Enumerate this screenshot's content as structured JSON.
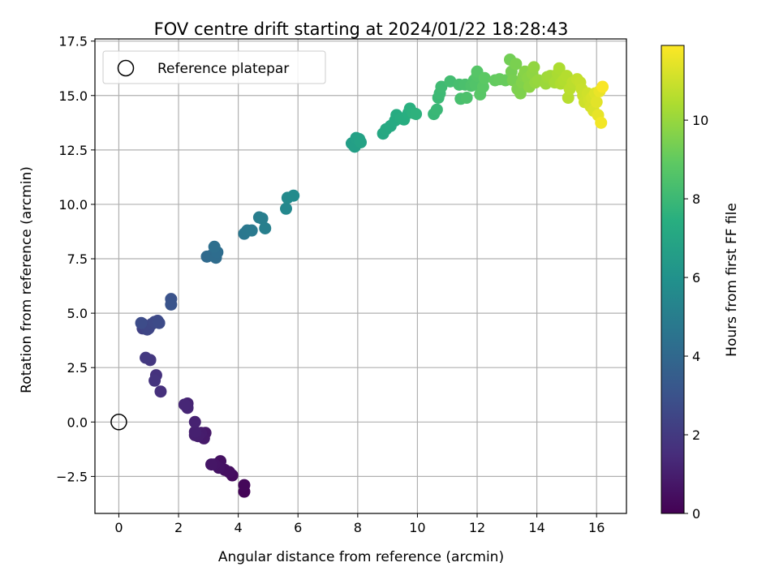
{
  "chart_data": {
    "type": "scatter",
    "title": "FOV centre drift starting at 2024/01/22 18:28:43",
    "xlabel": "Angular distance from reference (arcmin)",
    "ylabel": "Rotation from reference (arcmin)",
    "xlim": [
      -0.8,
      17.0
    ],
    "ylim": [
      -4.2,
      17.6
    ],
    "x_ticks": [
      0,
      2,
      4,
      6,
      8,
      10,
      12,
      14,
      16
    ],
    "y_ticks": [
      -2.5,
      0.0,
      2.5,
      5.0,
      7.5,
      10.0,
      12.5,
      15.0,
      17.5
    ],
    "x_tick_labels": [
      "0",
      "2",
      "4",
      "6",
      "8",
      "10",
      "12",
      "14",
      "16"
    ],
    "y_tick_labels": [
      "−2.5",
      "0.0",
      "2.5",
      "5.0",
      "7.5",
      "10.0",
      "12.5",
      "15.0",
      "17.5"
    ],
    "grid": true,
    "colorbar": {
      "label": "Hours from first FF file",
      "colormap": "viridis",
      "range": [
        0,
        11.9
      ],
      "ticks": [
        0,
        2,
        4,
        6,
        8,
        10
      ],
      "tick_labels": [
        "0",
        "2",
        "4",
        "6",
        "8",
        "10"
      ]
    },
    "legend": {
      "placement": "top-left",
      "entries": [
        {
          "label": "Reference platepar",
          "marker": "open-circle"
        }
      ]
    },
    "reference_point": {
      "x": 0,
      "y": 0,
      "label": "Reference platepar"
    },
    "points": [
      {
        "x": 4.2,
        "y": -3.2,
        "c": 0.1
      },
      {
        "x": 4.2,
        "y": -2.9,
        "c": 0.2
      },
      {
        "x": 3.8,
        "y": -2.45,
        "c": 0.35
      },
      {
        "x": 3.7,
        "y": -2.3,
        "c": 0.45
      },
      {
        "x": 3.55,
        "y": -2.2,
        "c": 0.5
      },
      {
        "x": 3.4,
        "y": -1.8,
        "c": 0.55
      },
      {
        "x": 3.35,
        "y": -2.1,
        "c": 0.6
      },
      {
        "x": 3.2,
        "y": -1.95,
        "c": 0.65
      },
      {
        "x": 3.1,
        "y": -1.95,
        "c": 0.7
      },
      {
        "x": 2.9,
        "y": -0.5,
        "c": 0.8
      },
      {
        "x": 2.85,
        "y": -0.75,
        "c": 0.85
      },
      {
        "x": 2.75,
        "y": -0.5,
        "c": 0.9
      },
      {
        "x": 2.65,
        "y": -0.65,
        "c": 0.95
      },
      {
        "x": 2.55,
        "y": -0.6,
        "c": 1.0
      },
      {
        "x": 2.55,
        "y": -0.45,
        "c": 1.05
      },
      {
        "x": 2.55,
        "y": 0.0,
        "c": 1.1
      },
      {
        "x": 2.3,
        "y": 0.85,
        "c": 1.2
      },
      {
        "x": 2.3,
        "y": 0.65,
        "c": 1.25
      },
      {
        "x": 2.2,
        "y": 0.8,
        "c": 1.3
      },
      {
        "x": 1.4,
        "y": 1.4,
        "c": 1.6
      },
      {
        "x": 1.25,
        "y": 2.15,
        "c": 1.7
      },
      {
        "x": 1.2,
        "y": 1.9,
        "c": 1.75
      },
      {
        "x": 1.05,
        "y": 2.85,
        "c": 1.9
      },
      {
        "x": 0.9,
        "y": 2.95,
        "c": 1.95
      },
      {
        "x": 0.8,
        "y": 4.3,
        "c": 2.3
      },
      {
        "x": 0.8,
        "y": 4.5,
        "c": 2.35
      },
      {
        "x": 0.9,
        "y": 4.4,
        "c": 2.4
      },
      {
        "x": 0.95,
        "y": 4.25,
        "c": 2.45
      },
      {
        "x": 1.0,
        "y": 4.3,
        "c": 2.5
      },
      {
        "x": 1.1,
        "y": 4.5,
        "c": 2.55
      },
      {
        "x": 1.2,
        "y": 4.6,
        "c": 2.6
      },
      {
        "x": 1.3,
        "y": 4.65,
        "c": 2.65
      },
      {
        "x": 1.35,
        "y": 4.55,
        "c": 2.7
      },
      {
        "x": 0.75,
        "y": 4.55,
        "c": 2.75
      },
      {
        "x": 1.75,
        "y": 5.65,
        "c": 3.0
      },
      {
        "x": 1.75,
        "y": 5.4,
        "c": 3.05
      },
      {
        "x": 2.95,
        "y": 7.6,
        "c": 4.1
      },
      {
        "x": 3.1,
        "y": 7.65,
        "c": 4.15
      },
      {
        "x": 3.25,
        "y": 7.55,
        "c": 4.2
      },
      {
        "x": 3.3,
        "y": 7.8,
        "c": 4.25
      },
      {
        "x": 3.2,
        "y": 8.05,
        "c": 4.3
      },
      {
        "x": 4.2,
        "y": 8.65,
        "c": 4.7
      },
      {
        "x": 4.3,
        "y": 8.8,
        "c": 4.75
      },
      {
        "x": 4.45,
        "y": 8.8,
        "c": 4.8
      },
      {
        "x": 4.7,
        "y": 9.4,
        "c": 5.0
      },
      {
        "x": 4.8,
        "y": 9.35,
        "c": 5.05
      },
      {
        "x": 4.9,
        "y": 8.9,
        "c": 5.1
      },
      {
        "x": 5.6,
        "y": 9.8,
        "c": 5.5
      },
      {
        "x": 5.65,
        "y": 10.3,
        "c": 5.6
      },
      {
        "x": 5.85,
        "y": 10.4,
        "c": 5.65
      },
      {
        "x": 7.8,
        "y": 12.8,
        "c": 6.6
      },
      {
        "x": 7.9,
        "y": 12.65,
        "c": 6.65
      },
      {
        "x": 7.95,
        "y": 13.05,
        "c": 6.7
      },
      {
        "x": 8.05,
        "y": 13.0,
        "c": 6.75
      },
      {
        "x": 8.1,
        "y": 12.85,
        "c": 6.8
      },
      {
        "x": 8.85,
        "y": 13.25,
        "c": 7.1
      },
      {
        "x": 8.95,
        "y": 13.45,
        "c": 7.15
      },
      {
        "x": 9.1,
        "y": 13.6,
        "c": 7.2
      },
      {
        "x": 9.25,
        "y": 13.85,
        "c": 7.25
      },
      {
        "x": 9.3,
        "y": 14.1,
        "c": 7.3
      },
      {
        "x": 9.45,
        "y": 13.95,
        "c": 7.35
      },
      {
        "x": 9.55,
        "y": 13.9,
        "c": 7.4
      },
      {
        "x": 9.7,
        "y": 14.2,
        "c": 7.45
      },
      {
        "x": 9.75,
        "y": 14.4,
        "c": 7.5
      },
      {
        "x": 9.85,
        "y": 14.2,
        "c": 7.55
      },
      {
        "x": 9.95,
        "y": 14.15,
        "c": 7.6
      },
      {
        "x": 10.55,
        "y": 14.15,
        "c": 7.9
      },
      {
        "x": 10.65,
        "y": 14.35,
        "c": 7.95
      },
      {
        "x": 10.7,
        "y": 14.9,
        "c": 8.0
      },
      {
        "x": 10.75,
        "y": 15.1,
        "c": 8.05
      },
      {
        "x": 10.8,
        "y": 15.4,
        "c": 8.1
      },
      {
        "x": 11.1,
        "y": 15.65,
        "c": 8.2
      },
      {
        "x": 11.4,
        "y": 15.5,
        "c": 8.3
      },
      {
        "x": 11.45,
        "y": 14.85,
        "c": 8.35
      },
      {
        "x": 11.6,
        "y": 15.5,
        "c": 8.4
      },
      {
        "x": 11.65,
        "y": 14.9,
        "c": 8.45
      },
      {
        "x": 11.8,
        "y": 15.45,
        "c": 8.5
      },
      {
        "x": 11.9,
        "y": 15.7,
        "c": 8.55
      },
      {
        "x": 11.95,
        "y": 15.5,
        "c": 8.6
      },
      {
        "x": 12.0,
        "y": 15.9,
        "c": 8.65
      },
      {
        "x": 12.0,
        "y": 16.1,
        "c": 8.7
      },
      {
        "x": 12.1,
        "y": 15.05,
        "c": 8.75
      },
      {
        "x": 12.2,
        "y": 15.4,
        "c": 8.8
      },
      {
        "x": 12.25,
        "y": 15.8,
        "c": 8.85
      },
      {
        "x": 12.6,
        "y": 15.7,
        "c": 9.0
      },
      {
        "x": 12.75,
        "y": 15.75,
        "c": 9.05
      },
      {
        "x": 12.95,
        "y": 15.7,
        "c": 9.1
      },
      {
        "x": 13.1,
        "y": 16.65,
        "c": 9.3
      },
      {
        "x": 13.15,
        "y": 16.1,
        "c": 9.35
      },
      {
        "x": 13.2,
        "y": 15.7,
        "c": 9.4
      },
      {
        "x": 13.3,
        "y": 16.45,
        "c": 9.45
      },
      {
        "x": 13.35,
        "y": 15.3,
        "c": 9.5
      },
      {
        "x": 13.45,
        "y": 15.1,
        "c": 9.55
      },
      {
        "x": 13.5,
        "y": 15.6,
        "c": 9.6
      },
      {
        "x": 13.55,
        "y": 15.9,
        "c": 9.65
      },
      {
        "x": 13.6,
        "y": 16.1,
        "c": 9.7
      },
      {
        "x": 13.7,
        "y": 15.8,
        "c": 9.75
      },
      {
        "x": 13.75,
        "y": 15.4,
        "c": 9.8
      },
      {
        "x": 13.85,
        "y": 16.0,
        "c": 9.85
      },
      {
        "x": 13.9,
        "y": 16.3,
        "c": 9.9
      },
      {
        "x": 13.95,
        "y": 15.6,
        "c": 9.95
      },
      {
        "x": 14.05,
        "y": 15.7,
        "c": 10.0
      },
      {
        "x": 14.3,
        "y": 15.55,
        "c": 10.1
      },
      {
        "x": 14.35,
        "y": 15.85,
        "c": 10.15
      },
      {
        "x": 14.45,
        "y": 15.9,
        "c": 10.2
      },
      {
        "x": 14.6,
        "y": 15.6,
        "c": 10.3
      },
      {
        "x": 14.7,
        "y": 16.0,
        "c": 10.35
      },
      {
        "x": 14.75,
        "y": 16.25,
        "c": 10.4
      },
      {
        "x": 14.8,
        "y": 15.55,
        "c": 10.45
      },
      {
        "x": 14.9,
        "y": 15.7,
        "c": 10.5
      },
      {
        "x": 15.0,
        "y": 15.9,
        "c": 10.55
      },
      {
        "x": 15.05,
        "y": 14.9,
        "c": 10.6
      },
      {
        "x": 15.1,
        "y": 15.3,
        "c": 10.65
      },
      {
        "x": 15.2,
        "y": 15.6,
        "c": 10.7
      },
      {
        "x": 15.35,
        "y": 15.75,
        "c": 10.8
      },
      {
        "x": 15.45,
        "y": 15.6,
        "c": 10.85
      },
      {
        "x": 15.5,
        "y": 15.3,
        "c": 10.9
      },
      {
        "x": 15.55,
        "y": 15.0,
        "c": 10.95
      },
      {
        "x": 15.6,
        "y": 14.7,
        "c": 11.0
      },
      {
        "x": 15.7,
        "y": 15.1,
        "c": 11.05
      },
      {
        "x": 15.75,
        "y": 14.8,
        "c": 11.1
      },
      {
        "x": 15.8,
        "y": 14.5,
        "c": 11.15
      },
      {
        "x": 15.85,
        "y": 14.9,
        "c": 11.2
      },
      {
        "x": 15.9,
        "y": 14.3,
        "c": 11.25
      },
      {
        "x": 15.95,
        "y": 15.1,
        "c": 11.3
      },
      {
        "x": 16.0,
        "y": 14.7,
        "c": 11.4
      },
      {
        "x": 16.05,
        "y": 14.1,
        "c": 11.5
      },
      {
        "x": 16.1,
        "y": 15.2,
        "c": 11.55
      },
      {
        "x": 16.15,
        "y": 13.75,
        "c": 11.7
      },
      {
        "x": 16.2,
        "y": 15.4,
        "c": 11.8
      }
    ]
  }
}
